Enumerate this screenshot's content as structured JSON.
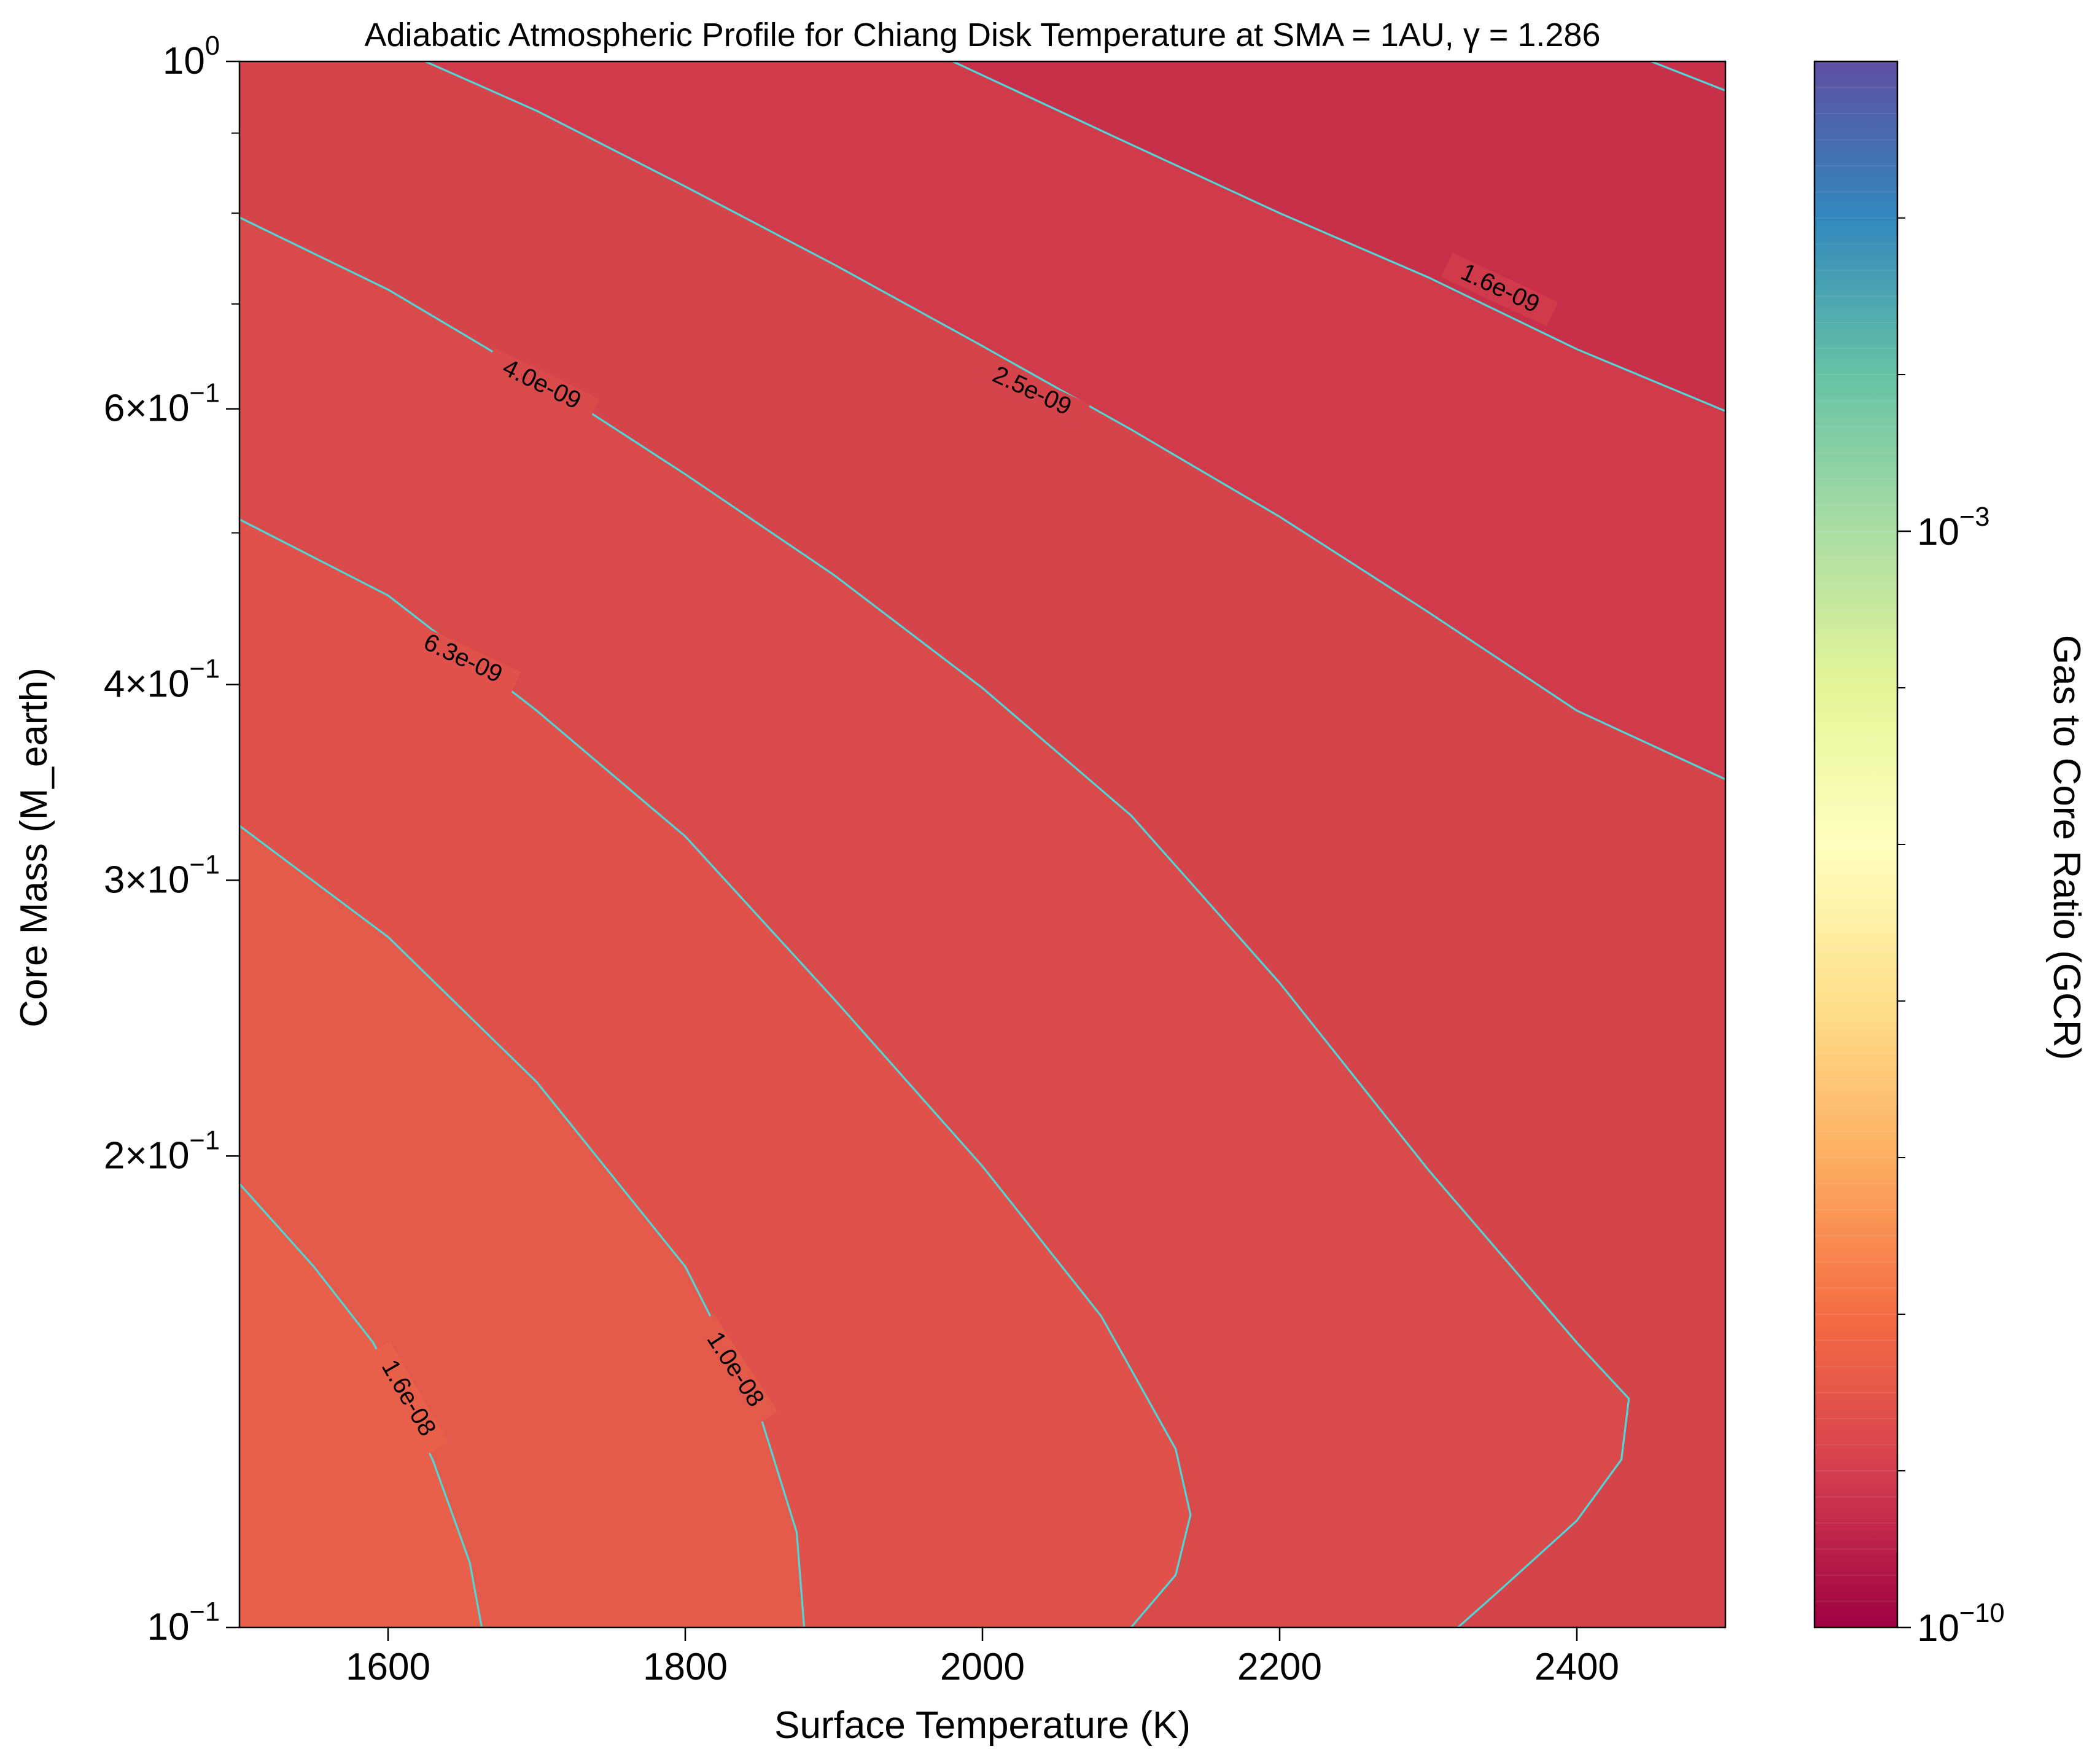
{
  "chart_data": {
    "type": "contour",
    "title": "Adiabatic Atmospheric Profile for Chiang Disk Temperature at SMA = 1AU, γ = 1.286",
    "xlabel": "Surface Temperature (K)",
    "ylabel": "Core Mass (M_earth)",
    "colorbar_label": "Gas to Core Ratio (GCR)",
    "colormap": "Spectral",
    "xlim": [
      1500,
      2500
    ],
    "ylim": [
      0.1,
      1.0
    ],
    "yscale": "log",
    "x_ticks": [
      {
        "value": 1600,
        "label": "1600"
      },
      {
        "value": 1800,
        "label": "1800"
      },
      {
        "value": 2000,
        "label": "2000"
      },
      {
        "value": 2200,
        "label": "2200"
      },
      {
        "value": 2400,
        "label": "2400"
      }
    ],
    "y_ticks": [
      {
        "value": 0.1,
        "base": "10",
        "exp": "−1",
        "coef": ""
      },
      {
        "value": 0.2,
        "base": "10",
        "exp": "−1",
        "coef": "2×"
      },
      {
        "value": 0.3,
        "base": "10",
        "exp": "−1",
        "coef": "3×"
      },
      {
        "value": 0.4,
        "base": "10",
        "exp": "−1",
        "coef": "4×"
      },
      {
        "value": 0.6,
        "base": "10",
        "exp": "−1",
        "coef": "6×"
      },
      {
        "value": 1.0,
        "base": "10",
        "exp": "0",
        "coef": ""
      }
    ],
    "y_minor_ticks": [
      0.5,
      0.7,
      0.8,
      0.9
    ],
    "colorbar_range": [
      1e-10,
      1
    ],
    "colorbar_ticks": [
      {
        "value": 1e-10,
        "base": "10",
        "exp": "−10"
      },
      {
        "value": 0.001,
        "base": "10",
        "exp": "−3"
      }
    ],
    "colorbar_minor_ticks": [
      1e-09,
      1e-08,
      1e-07,
      1e-06,
      1e-05,
      0.0001,
      0.01,
      0.1
    ],
    "contour_color": "#4fd6d6",
    "fill_regions": [
      {
        "color": "#e8604a",
        "level": 1.6e-08
      },
      {
        "color": "#e35a4a",
        "level": 1e-08
      },
      {
        "color": "#df514a",
        "level": 6.3e-09
      },
      {
        "color": "#d94a4b",
        "level": 4e-09
      },
      {
        "color": "#d5434b",
        "level": 2.5e-09
      },
      {
        "color": "#d03a4b",
        "level": 1.6e-09
      },
      {
        "color": "#c8304a",
        "level": 1e-09
      }
    ],
    "contours": [
      {
        "level": 1.6e-08,
        "label": "1.6e-08",
        "points": [
          [
            1500,
            0.192
          ],
          [
            1550,
            0.17
          ],
          [
            1590,
            0.152
          ],
          [
            1630,
            0.128
          ],
          [
            1655,
            0.11
          ],
          [
            1663,
            0.1
          ]
        ],
        "label_pos": [
          1613,
          0.14
        ],
        "label_angle": 60
      },
      {
        "level": 1e-08,
        "label": "1.0e-08",
        "points": [
          [
            1500,
            0.325
          ],
          [
            1600,
            0.276
          ],
          [
            1700,
            0.223
          ],
          [
            1800,
            0.17
          ],
          [
            1850,
            0.137
          ],
          [
            1875,
            0.115
          ],
          [
            1880,
            0.1
          ]
        ],
        "label_pos": [
          1833,
          0.146
        ],
        "label_angle": 57
      },
      {
        "level": 6.3e-09,
        "label": "6.3e-09",
        "points": [
          [
            1500,
            0.51
          ],
          [
            1600,
            0.456
          ],
          [
            1700,
            0.385
          ],
          [
            1800,
            0.32
          ],
          [
            1900,
            0.252
          ],
          [
            2000,
            0.197
          ],
          [
            2080,
            0.158
          ],
          [
            2130,
            0.13
          ],
          [
            2140,
            0.118
          ],
          [
            2130,
            0.108
          ],
          [
            2100,
            0.1
          ]
        ],
        "label_pos": [
          1650,
          0.415
        ],
        "label_angle": 25
      },
      {
        "level": 4e-09,
        "label": "4.0e-09",
        "points": [
          [
            1500,
            0.795
          ],
          [
            1600,
            0.715
          ],
          [
            1700,
            0.628
          ],
          [
            1800,
            0.545
          ],
          [
            1900,
            0.47
          ],
          [
            2000,
            0.398
          ],
          [
            2100,
            0.33
          ],
          [
            2200,
            0.258
          ],
          [
            2300,
            0.196
          ],
          [
            2400,
            0.152
          ],
          [
            2435,
            0.14
          ],
          [
            2430,
            0.128
          ],
          [
            2400,
            0.117
          ],
          [
            2350,
            0.106
          ],
          [
            2320,
            0.1
          ]
        ],
        "label_pos": [
          1703,
          0.621
        ],
        "label_angle": 26
      },
      {
        "level": 2.5e-09,
        "label": "2.5e-09",
        "points": [
          [
            1625,
            1.0
          ],
          [
            1700,
            0.93
          ],
          [
            1800,
            0.832
          ],
          [
            1900,
            0.742
          ],
          [
            2000,
            0.658
          ],
          [
            2100,
            0.582
          ],
          [
            2200,
            0.512
          ],
          [
            2300,
            0.445
          ],
          [
            2400,
            0.385
          ],
          [
            2500,
            0.348
          ]
        ],
        "label_pos": [
          2033,
          0.615
        ],
        "label_angle": 25
      },
      {
        "level": 1.6e-09,
        "label": "1.6e-09",
        "points": [
          [
            1980,
            1.0
          ],
          [
            2100,
            0.885
          ],
          [
            2200,
            0.8
          ],
          [
            2300,
            0.728
          ],
          [
            2400,
            0.655
          ],
          [
            2500,
            0.598
          ]
        ],
        "label_pos": [
          2348,
          0.715
        ],
        "label_angle": 25
      },
      {
        "level": 1e-09,
        "label": "",
        "points": [
          [
            2450,
            1.0
          ],
          [
            2500,
            0.958
          ]
        ]
      }
    ]
  }
}
